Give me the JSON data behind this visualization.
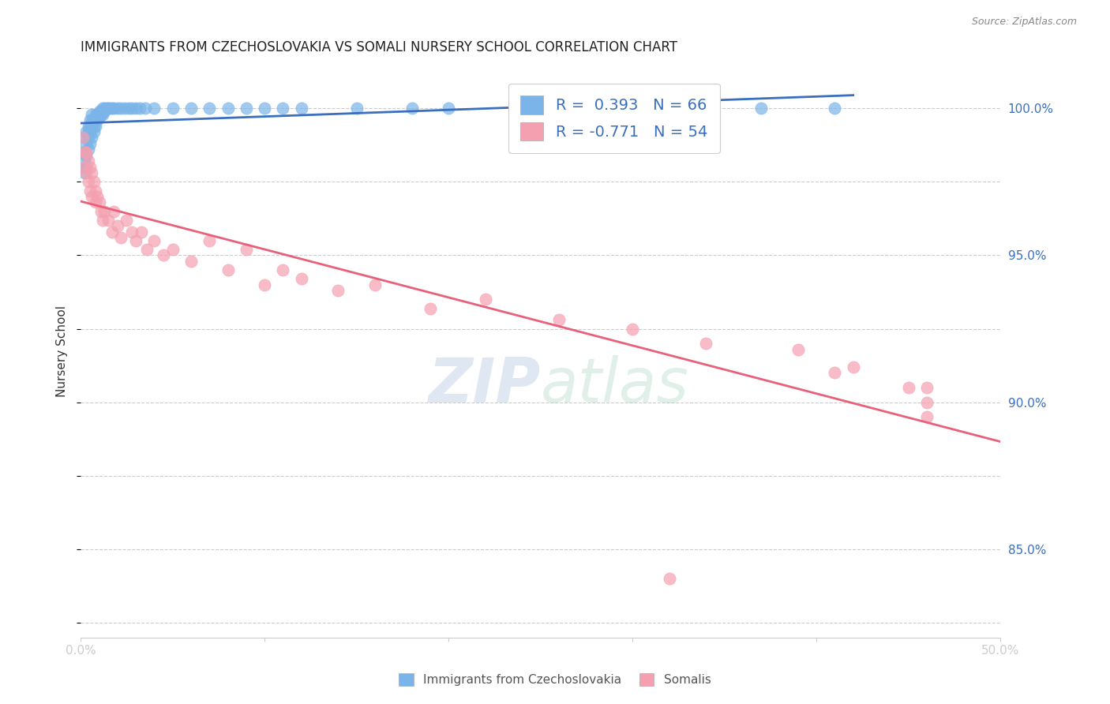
{
  "title": "IMMIGRANTS FROM CZECHOSLOVAKIA VS SOMALI NURSERY SCHOOL CORRELATION CHART",
  "source": "Source: ZipAtlas.com",
  "ylabel": "Nursery School",
  "ylabel_ticks": [
    "85.0%",
    "90.0%",
    "95.0%",
    "100.0%"
  ],
  "ylabel_tick_values": [
    0.85,
    0.9,
    0.95,
    1.0
  ],
  "xlim": [
    0.0,
    0.5
  ],
  "ylim": [
    0.82,
    1.015
  ],
  "legend_r1": "R =  0.393   N = 66",
  "legend_r2": "R = -0.771   N = 54",
  "color_blue": "#7ab4e8",
  "color_pink": "#f4a0b0",
  "color_line_blue": "#3a6fbf",
  "color_line_pink": "#e8607a",
  "grid_color": "#cccccc",
  "blue_x": [
    0.001,
    0.002,
    0.002,
    0.002,
    0.003,
    0.003,
    0.003,
    0.003,
    0.004,
    0.004,
    0.004,
    0.004,
    0.005,
    0.005,
    0.005,
    0.005,
    0.006,
    0.006,
    0.006,
    0.006,
    0.007,
    0.007,
    0.007,
    0.008,
    0.008,
    0.008,
    0.009,
    0.009,
    0.01,
    0.01,
    0.011,
    0.011,
    0.012,
    0.012,
    0.013,
    0.013,
    0.014,
    0.015,
    0.016,
    0.017,
    0.018,
    0.02,
    0.022,
    0.024,
    0.026,
    0.028,
    0.03,
    0.032,
    0.035,
    0.04,
    0.05,
    0.06,
    0.07,
    0.08,
    0.09,
    0.1,
    0.11,
    0.12,
    0.15,
    0.18,
    0.2,
    0.24,
    0.28,
    0.32,
    0.37,
    0.41
  ],
  "blue_y": [
    0.985,
    0.99,
    0.982,
    0.978,
    0.988,
    0.992,
    0.984,
    0.98,
    0.986,
    0.99,
    0.992,
    0.994,
    0.988,
    0.992,
    0.994,
    0.996,
    0.99,
    0.994,
    0.996,
    0.998,
    0.992,
    0.994,
    0.996,
    0.994,
    0.996,
    0.998,
    0.996,
    0.998,
    0.997,
    0.999,
    0.998,
    0.999,
    0.998,
    1.0,
    0.999,
    1.0,
    1.0,
    1.0,
    1.0,
    1.0,
    1.0,
    1.0,
    1.0,
    1.0,
    1.0,
    1.0,
    1.0,
    1.0,
    1.0,
    1.0,
    1.0,
    1.0,
    1.0,
    1.0,
    1.0,
    1.0,
    1.0,
    1.0,
    1.0,
    1.0,
    1.0,
    1.0,
    1.0,
    1.0,
    1.0,
    1.0
  ],
  "pink_x": [
    0.001,
    0.002,
    0.002,
    0.003,
    0.003,
    0.004,
    0.004,
    0.005,
    0.005,
    0.006,
    0.006,
    0.007,
    0.008,
    0.008,
    0.009,
    0.01,
    0.011,
    0.012,
    0.013,
    0.015,
    0.017,
    0.018,
    0.02,
    0.022,
    0.025,
    0.028,
    0.03,
    0.033,
    0.036,
    0.04,
    0.045,
    0.05,
    0.06,
    0.07,
    0.08,
    0.09,
    0.1,
    0.11,
    0.12,
    0.14,
    0.16,
    0.19,
    0.22,
    0.26,
    0.3,
    0.34,
    0.39,
    0.42,
    0.45,
    0.46,
    0.46,
    0.46,
    0.41,
    0.32
  ],
  "pink_y": [
    0.99,
    0.985,
    0.98,
    0.985,
    0.978,
    0.982,
    0.975,
    0.98,
    0.972,
    0.978,
    0.97,
    0.975,
    0.972,
    0.968,
    0.97,
    0.968,
    0.965,
    0.962,
    0.965,
    0.962,
    0.958,
    0.965,
    0.96,
    0.956,
    0.962,
    0.958,
    0.955,
    0.958,
    0.952,
    0.955,
    0.95,
    0.952,
    0.948,
    0.955,
    0.945,
    0.952,
    0.94,
    0.945,
    0.942,
    0.938,
    0.94,
    0.932,
    0.935,
    0.928,
    0.925,
    0.92,
    0.918,
    0.912,
    0.905,
    0.9,
    0.895,
    0.905,
    0.91,
    0.84
  ]
}
